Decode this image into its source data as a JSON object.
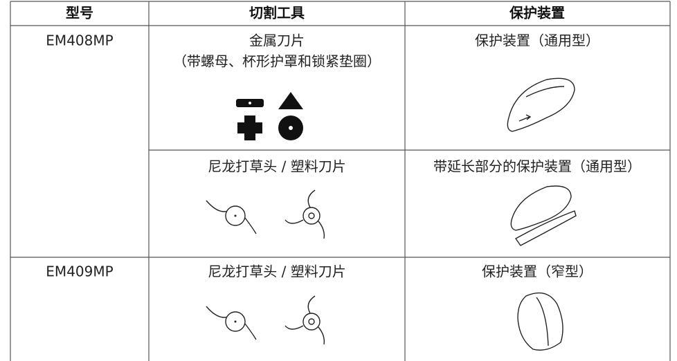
{
  "table": {
    "header": [
      "型号",
      "切割工具",
      "保护装置"
    ],
    "rows": [
      {
        "model": "EM408MP",
        "items": [
          {
            "tool": "金属刀片",
            "tool_note": "（带螺母、杯形护罩和锁紧垫圈）",
            "guard": "保护装置（通用型）"
          },
          {
            "tool": "尼龙打草头 / 塑料刀片",
            "guard": "带延长部分的保护装置（通用型）"
          }
        ]
      },
      {
        "model": "EM409MP",
        "items": [
          {
            "tool": "尼龙打草头 / 塑料刀片",
            "guard": "保护装置（窄型）"
          }
        ]
      }
    ]
  }
}
